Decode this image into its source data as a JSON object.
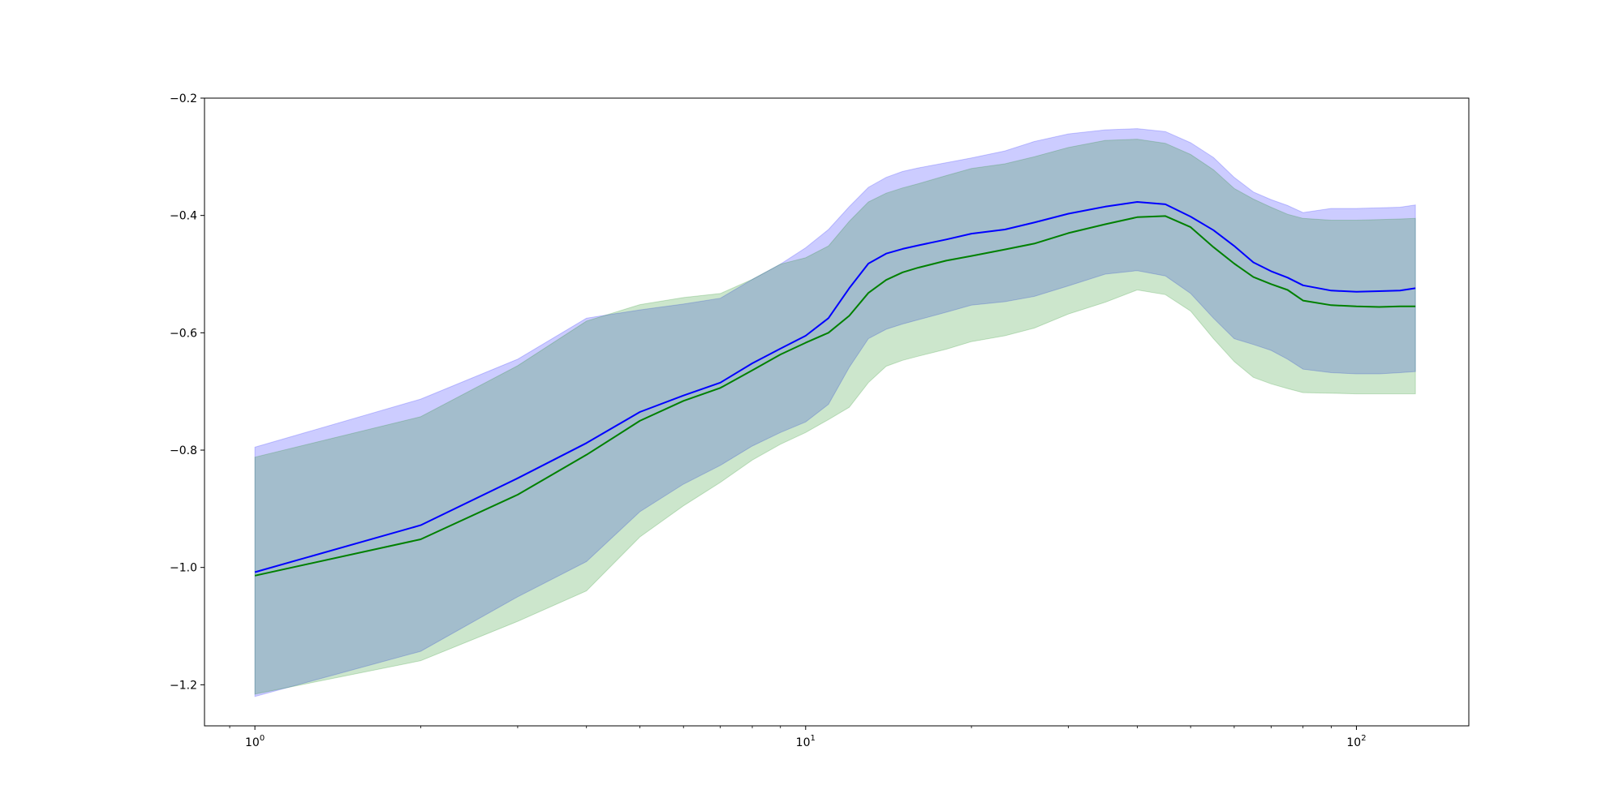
{
  "chart_data": {
    "type": "line",
    "title": "",
    "xlabel": "",
    "ylabel": "",
    "xscale": "log",
    "xlim": [
      0.81,
      160
    ],
    "ylim": [
      -1.27,
      -0.2
    ],
    "grid": false,
    "legend": "none",
    "x_ticks": [
      {
        "value": 1,
        "base": "10",
        "exp": "0"
      },
      {
        "value": 10,
        "base": "10",
        "exp": "1"
      },
      {
        "value": 100,
        "base": "10",
        "exp": "2"
      }
    ],
    "y_ticks": [
      {
        "value": -1.2,
        "label": "−1.2"
      },
      {
        "value": -1.0,
        "label": "−1.0"
      },
      {
        "value": -0.8,
        "label": "−0.8"
      },
      {
        "value": -0.6,
        "label": "−0.6"
      },
      {
        "value": -0.4,
        "label": "−0.4"
      },
      {
        "value": -0.2,
        "label": "−0.2"
      }
    ],
    "series": [
      {
        "color": "#0000ff",
        "band_color": "#0000ff",
        "band_opacity": 0.2,
        "x": [
          1,
          2,
          3,
          4,
          5,
          6,
          7,
          8,
          9,
          10,
          11,
          12,
          13,
          14,
          15,
          16,
          18,
          20,
          23,
          26,
          30,
          35,
          40,
          45,
          50,
          55,
          60,
          65,
          70,
          75,
          80,
          90,
          100,
          110,
          120,
          128
        ],
        "mean": [
          -1.008,
          -0.928,
          -0.848,
          -0.788,
          -0.735,
          -0.707,
          -0.685,
          -0.652,
          -0.627,
          -0.605,
          -0.575,
          -0.524,
          -0.482,
          -0.465,
          -0.457,
          -0.451,
          -0.441,
          -0.431,
          -0.424,
          -0.412,
          -0.397,
          -0.385,
          -0.377,
          -0.381,
          -0.402,
          -0.425,
          -0.452,
          -0.48,
          -0.495,
          -0.506,
          -0.519,
          -0.528,
          -0.53,
          -0.529,
          -0.528,
          -0.524
        ],
        "upper": [
          -0.795,
          -0.713,
          -0.645,
          -0.575,
          -0.561,
          -0.551,
          -0.541,
          -0.509,
          -0.483,
          -0.455,
          -0.424,
          -0.385,
          -0.352,
          -0.335,
          -0.325,
          -0.319,
          -0.31,
          -0.302,
          -0.29,
          -0.274,
          -0.261,
          -0.254,
          -0.252,
          -0.257,
          -0.276,
          -0.301,
          -0.335,
          -0.36,
          -0.373,
          -0.383,
          -0.395,
          -0.388,
          -0.388,
          -0.387,
          -0.386,
          -0.382
        ],
        "lower": [
          -1.22,
          -1.143,
          -1.05,
          -0.99,
          -0.905,
          -0.858,
          -0.826,
          -0.793,
          -0.77,
          -0.752,
          -0.722,
          -0.659,
          -0.61,
          -0.594,
          -0.585,
          -0.578,
          -0.565,
          -0.553,
          -0.547,
          -0.538,
          -0.52,
          -0.5,
          -0.494,
          -0.503,
          -0.533,
          -0.575,
          -0.61,
          -0.62,
          -0.63,
          -0.645,
          -0.662,
          -0.668,
          -0.67,
          -0.67,
          -0.668,
          -0.666
        ]
      },
      {
        "color": "#008000",
        "band_color": "#008000",
        "band_opacity": 0.2,
        "x": [
          1,
          2,
          3,
          4,
          5,
          6,
          7,
          8,
          9,
          10,
          11,
          12,
          13,
          14,
          15,
          16,
          18,
          20,
          23,
          26,
          30,
          35,
          40,
          45,
          50,
          55,
          60,
          65,
          70,
          75,
          80,
          90,
          100,
          110,
          120,
          128
        ],
        "mean": [
          -1.014,
          -0.952,
          -0.876,
          -0.808,
          -0.75,
          -0.716,
          -0.694,
          -0.664,
          -0.637,
          -0.617,
          -0.6,
          -0.571,
          -0.532,
          -0.51,
          -0.497,
          -0.489,
          -0.477,
          -0.469,
          -0.458,
          -0.448,
          -0.43,
          -0.415,
          -0.403,
          -0.401,
          -0.42,
          -0.454,
          -0.482,
          -0.505,
          -0.517,
          -0.527,
          -0.545,
          -0.553,
          -0.555,
          -0.556,
          -0.555,
          -0.555
        ],
        "upper": [
          -0.812,
          -0.743,
          -0.656,
          -0.58,
          -0.552,
          -0.54,
          -0.533,
          -0.509,
          -0.483,
          -0.472,
          -0.452,
          -0.41,
          -0.377,
          -0.362,
          -0.353,
          -0.346,
          -0.332,
          -0.32,
          -0.312,
          -0.3,
          -0.284,
          -0.272,
          -0.27,
          -0.277,
          -0.296,
          -0.322,
          -0.354,
          -0.372,
          -0.386,
          -0.398,
          -0.405,
          -0.408,
          -0.408,
          -0.407,
          -0.406,
          -0.405
        ],
        "lower": [
          -1.216,
          -1.159,
          -1.092,
          -1.04,
          -0.948,
          -0.895,
          -0.855,
          -0.817,
          -0.79,
          -0.77,
          -0.748,
          -0.727,
          -0.685,
          -0.657,
          -0.647,
          -0.64,
          -0.628,
          -0.615,
          -0.605,
          -0.592,
          -0.568,
          -0.548,
          -0.527,
          -0.535,
          -0.563,
          -0.61,
          -0.649,
          -0.676,
          -0.687,
          -0.695,
          -0.702,
          -0.703,
          -0.704,
          -0.704,
          -0.704,
          -0.704
        ]
      }
    ]
  }
}
